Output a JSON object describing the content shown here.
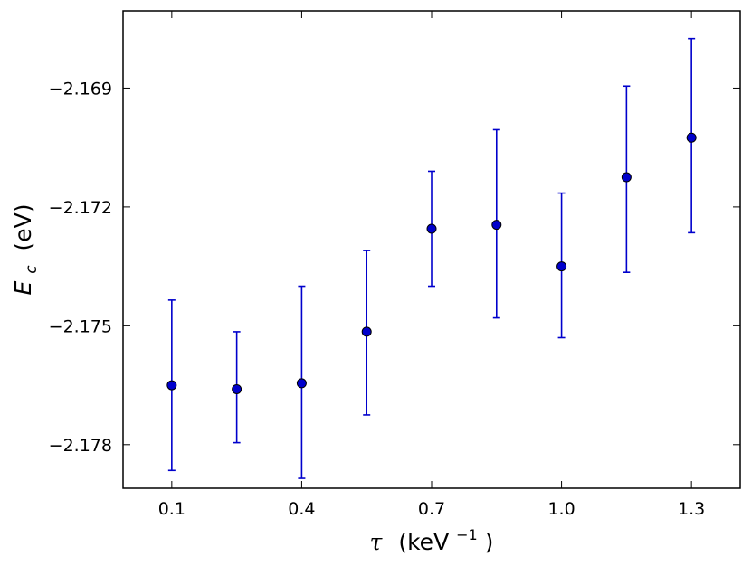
{
  "chart_data": {
    "type": "scatter",
    "x": [
      0.1,
      0.25,
      0.4,
      0.55,
      0.7,
      0.85,
      1.0,
      1.15,
      1.3
    ],
    "series": [
      {
        "values": [
          -2.1765,
          -2.1766,
          -2.17645,
          -2.17515,
          -2.17255,
          -2.17245,
          -2.1735,
          -2.17125,
          -2.17025
        ],
        "error_low": [
          -2.17865,
          -2.17795,
          -2.17885,
          -2.17725,
          -2.174,
          -2.1748,
          -2.1753,
          -2.17365,
          -2.17265
        ],
        "error_high": [
          -2.17435,
          -2.17515,
          -2.174,
          -2.1731,
          -2.1711,
          -2.17005,
          -2.17165,
          -2.16895,
          -2.16775
        ],
        "color": "#0000cc",
        "marker": "circle"
      }
    ],
    "xlim": [
      -0.0125,
      1.4125
    ],
    "ylim": [
      -2.1791,
      -2.16705
    ],
    "xticks": [
      "0.1",
      "0.4",
      "0.7",
      "1.0",
      "1.3"
    ],
    "yticks": [
      "−2.169",
      "−2.172",
      "−2.175",
      "−2.178"
    ],
    "xlabel": "τ (keV−1)",
    "ylabel": "Ec (eV)",
    "grid": false
  },
  "axes": {
    "x_title": {
      "symbol": "τ",
      "text": "(keV",
      "sup": "−1",
      "close": ")"
    },
    "y_title": {
      "symbol": "E",
      "sub": "c",
      "text": "(eV)"
    }
  }
}
